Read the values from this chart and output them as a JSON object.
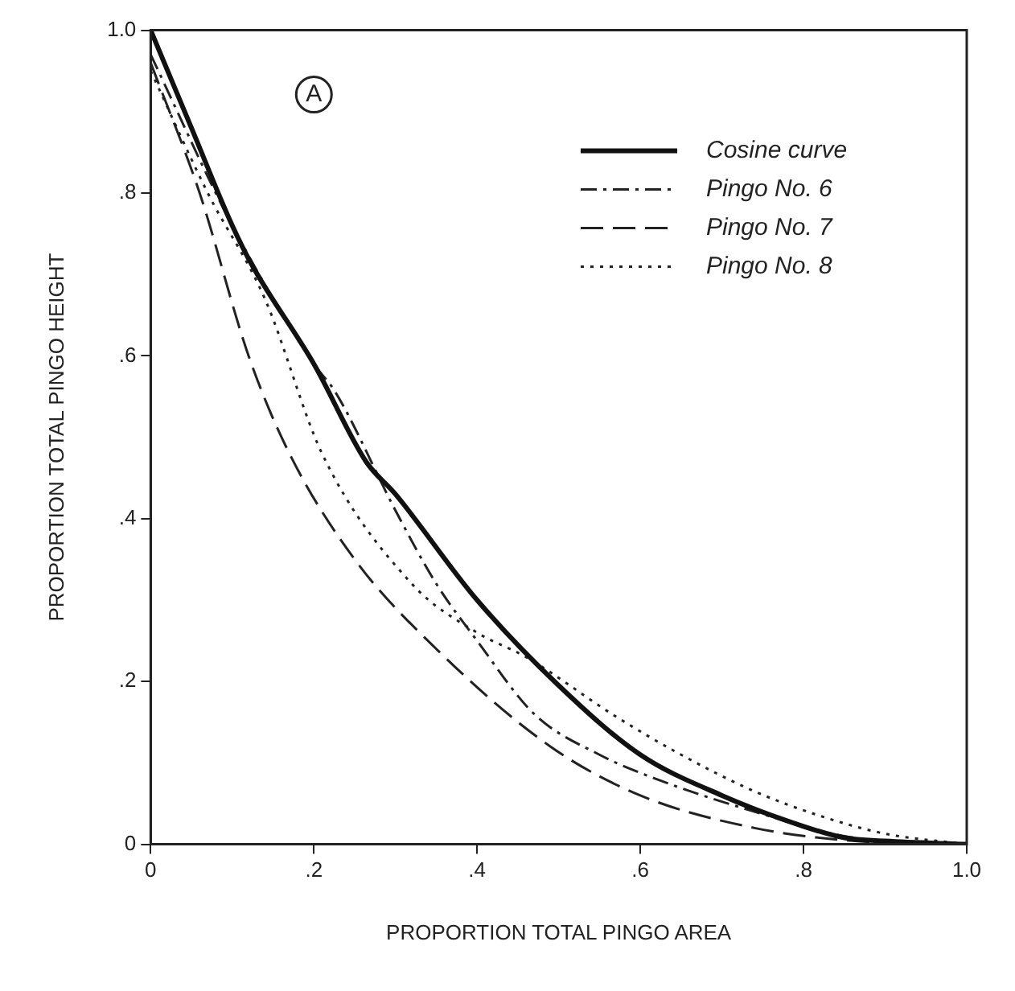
{
  "chart_data": {
    "type": "line",
    "xlabel": "PROPORTION TOTAL PINGO AREA",
    "ylabel": "PROPORTION TOTAL PINGO HEIGHT",
    "annotations": [
      "A"
    ],
    "xlim": [
      0,
      1
    ],
    "ylim": [
      0,
      1
    ],
    "xticks": [
      0,
      {
        "value": 0.2,
        "label": ".2"
      },
      {
        "value": 0.4,
        "label": ".4"
      },
      {
        "value": 0.6,
        "label": ".6"
      },
      {
        "value": 0.8,
        "label": ".8"
      },
      {
        "value": 1,
        "label": "1.0"
      }
    ],
    "yticks": [
      0,
      {
        "value": 0.2,
        "label": ".2"
      },
      {
        "value": 0.4,
        "label": ".4"
      },
      {
        "value": 0.6,
        "label": ".6"
      },
      {
        "value": 0.8,
        "label": ".8"
      },
      {
        "value": 1,
        "label": "1.0"
      }
    ],
    "grid": false,
    "legend": "top right",
    "marker": "none",
    "series": [
      {
        "name": "Cosine curve",
        "color": "#111111",
        "line_style": "solid",
        "x": [
          0,
          0.05,
          0.1,
          0.125,
          0.2,
          0.264,
          0.3,
          0.4,
          0.5,
          0.6,
          0.7,
          0.8,
          0.85,
          0.9,
          1
        ],
        "values": [
          1,
          0.88,
          0.76,
          0.71,
          0.59,
          0.47,
          0.43,
          0.3,
          0.195,
          0.11,
          0.06,
          0.022,
          0.008,
          0.004,
          0
        ]
      },
      {
        "name": "Pingo No. 6",
        "color": "#222222",
        "line_style": "dashdot",
        "x": [
          0,
          0.1,
          0.2,
          0.226,
          0.3,
          0.35,
          0.4,
          0.47,
          0.55,
          0.62,
          0.74,
          0.85,
          0.95
        ],
        "values": [
          0.97,
          0.76,
          0.59,
          0.556,
          0.41,
          0.32,
          0.25,
          0.16,
          0.11,
          0.08,
          0.04,
          0.01,
          0
        ]
      },
      {
        "name": "Pingo No. 7",
        "color": "#222222",
        "line_style": "dashed",
        "x": [
          0,
          0.06,
          0.12,
          0.17,
          0.25,
          0.35,
          0.49,
          0.6,
          0.74,
          0.85,
          0.95
        ],
        "values": [
          0.96,
          0.8,
          0.6,
          0.48,
          0.35,
          0.24,
          0.12,
          0.06,
          0.02,
          0.005,
          0
        ]
      },
      {
        "name": "Pingo No. 8",
        "color": "#222222",
        "line_style": "dotted",
        "x": [
          0,
          0.07,
          0.14,
          0.21,
          0.32,
          0.4,
          0.46,
          0.57,
          0.65,
          0.74,
          0.82,
          0.9,
          1
        ],
        "values": [
          0.95,
          0.8,
          0.67,
          0.48,
          0.32,
          0.26,
          0.23,
          0.157,
          0.11,
          0.065,
          0.035,
          0.013,
          0
        ]
      }
    ]
  }
}
